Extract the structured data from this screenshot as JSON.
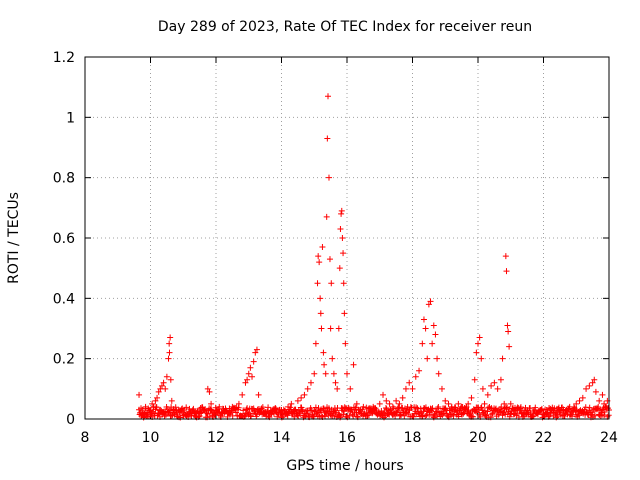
{
  "chart_data": {
    "type": "scatter",
    "title": "Day 289 of 2023, Rate Of TEC Index for receiver reun",
    "xlabel": "GPS time / hours",
    "ylabel": "ROTI / TECUs",
    "xlim": [
      8,
      24
    ],
    "ylim": [
      0,
      1.2
    ],
    "x_ticks": [
      8,
      10,
      12,
      14,
      16,
      18,
      20,
      22,
      24
    ],
    "x_tick_labels": [
      "8",
      "10",
      "12",
      "14",
      "16",
      "18",
      "20",
      "22",
      "24"
    ],
    "y_ticks": [
      0,
      0.2,
      0.4,
      0.6,
      0.8,
      1.0,
      1.2
    ],
    "y_tick_labels": [
      "0",
      "0.2",
      "0.4",
      "0.6",
      "0.8",
      "1",
      "1.2"
    ],
    "grid": true,
    "marker": "+",
    "color": "#ff0000",
    "series": [
      {
        "values_description_free": true,
        "points": [
          [
            9.65,
            0.08
          ],
          [
            9.68,
            0.02
          ],
          [
            9.72,
            0.01
          ],
          [
            9.75,
            0.03
          ],
          [
            9.8,
            0.02
          ],
          [
            9.85,
            0.04
          ],
          [
            9.9,
            0.01
          ],
          [
            9.95,
            0.03
          ],
          [
            10.0,
            0.02
          ],
          [
            10.05,
            0.05
          ],
          [
            10.1,
            0.04
          ],
          [
            10.15,
            0.06
          ],
          [
            10.2,
            0.07
          ],
          [
            10.25,
            0.09
          ],
          [
            10.3,
            0.1
          ],
          [
            10.35,
            0.11
          ],
          [
            10.4,
            0.12
          ],
          [
            10.45,
            0.1
          ],
          [
            10.5,
            0.14
          ],
          [
            10.55,
            0.2
          ],
          [
            10.57,
            0.25
          ],
          [
            10.6,
            0.27
          ],
          [
            10.58,
            0.22
          ],
          [
            10.62,
            0.13
          ],
          [
            10.65,
            0.06
          ],
          [
            10.7,
            0.03
          ],
          [
            10.8,
            0.02
          ],
          [
            10.9,
            0.03
          ],
          [
            11.0,
            0.02
          ],
          [
            11.1,
            0.01
          ],
          [
            11.2,
            0.02
          ],
          [
            11.3,
            0.03
          ],
          [
            11.4,
            0.02
          ],
          [
            11.5,
            0.01
          ],
          [
            11.6,
            0.03
          ],
          [
            11.7,
            0.02
          ],
          [
            11.75,
            0.1
          ],
          [
            11.8,
            0.09
          ],
          [
            11.85,
            0.05
          ],
          [
            11.9,
            0.02
          ],
          [
            12.0,
            0.03
          ],
          [
            12.1,
            0.04
          ],
          [
            12.2,
            0.02
          ],
          [
            12.3,
            0.03
          ],
          [
            12.4,
            0.02
          ],
          [
            12.5,
            0.04
          ],
          [
            12.6,
            0.03
          ],
          [
            12.7,
            0.05
          ],
          [
            12.8,
            0.08
          ],
          [
            12.9,
            0.12
          ],
          [
            12.95,
            0.13
          ],
          [
            13.0,
            0.15
          ],
          [
            13.05,
            0.17
          ],
          [
            13.1,
            0.14
          ],
          [
            13.15,
            0.19
          ],
          [
            13.2,
            0.22
          ],
          [
            13.25,
            0.23
          ],
          [
            13.3,
            0.08
          ],
          [
            13.4,
            0.03
          ],
          [
            13.5,
            0.02
          ],
          [
            13.6,
            0.01
          ],
          [
            13.7,
            0.02
          ],
          [
            13.8,
            0.03
          ],
          [
            13.9,
            0.02
          ],
          [
            14.0,
            0.03
          ],
          [
            14.1,
            0.02
          ],
          [
            14.2,
            0.04
          ],
          [
            14.3,
            0.05
          ],
          [
            14.4,
            0.03
          ],
          [
            14.5,
            0.06
          ],
          [
            14.6,
            0.07
          ],
          [
            14.7,
            0.08
          ],
          [
            14.8,
            0.1
          ],
          [
            14.9,
            0.12
          ],
          [
            15.0,
            0.15
          ],
          [
            15.05,
            0.25
          ],
          [
            15.1,
            0.45
          ],
          [
            15.12,
            0.54
          ],
          [
            15.15,
            0.52
          ],
          [
            15.18,
            0.4
          ],
          [
            15.2,
            0.35
          ],
          [
            15.22,
            0.3
          ],
          [
            15.25,
            0.57
          ],
          [
            15.28,
            0.22
          ],
          [
            15.3,
            0.18
          ],
          [
            15.35,
            0.15
          ],
          [
            15.38,
            0.67
          ],
          [
            15.4,
            0.93
          ],
          [
            15.42,
            1.07
          ],
          [
            15.45,
            0.8
          ],
          [
            15.48,
            0.53
          ],
          [
            15.5,
            0.3
          ],
          [
            15.52,
            0.45
          ],
          [
            15.55,
            0.2
          ],
          [
            15.6,
            0.15
          ],
          [
            15.65,
            0.12
          ],
          [
            15.7,
            0.1
          ],
          [
            15.75,
            0.3
          ],
          [
            15.78,
            0.5
          ],
          [
            15.8,
            0.63
          ],
          [
            15.82,
            0.68
          ],
          [
            15.84,
            0.69
          ],
          [
            15.86,
            0.6
          ],
          [
            15.88,
            0.55
          ],
          [
            15.9,
            0.45
          ],
          [
            15.92,
            0.35
          ],
          [
            15.95,
            0.25
          ],
          [
            16.0,
            0.15
          ],
          [
            16.1,
            0.1
          ],
          [
            16.2,
            0.18
          ],
          [
            16.3,
            0.05
          ],
          [
            16.4,
            0.03
          ],
          [
            16.5,
            0.04
          ],
          [
            16.6,
            0.02
          ],
          [
            16.7,
            0.03
          ],
          [
            16.8,
            0.04
          ],
          [
            16.9,
            0.03
          ],
          [
            17.0,
            0.05
          ],
          [
            17.1,
            0.08
          ],
          [
            17.2,
            0.06
          ],
          [
            17.3,
            0.05
          ],
          [
            17.4,
            0.04
          ],
          [
            17.5,
            0.06
          ],
          [
            17.6,
            0.05
          ],
          [
            17.7,
            0.07
          ],
          [
            17.8,
            0.1
          ],
          [
            17.9,
            0.12
          ],
          [
            18.0,
            0.1
          ],
          [
            18.1,
            0.14
          ],
          [
            18.2,
            0.16
          ],
          [
            18.3,
            0.25
          ],
          [
            18.35,
            0.33
          ],
          [
            18.4,
            0.3
          ],
          [
            18.45,
            0.2
          ],
          [
            18.5,
            0.38
          ],
          [
            18.55,
            0.39
          ],
          [
            18.6,
            0.25
          ],
          [
            18.65,
            0.31
          ],
          [
            18.7,
            0.28
          ],
          [
            18.75,
            0.2
          ],
          [
            18.8,
            0.15
          ],
          [
            18.9,
            0.1
          ],
          [
            19.0,
            0.06
          ],
          [
            19.1,
            0.05
          ],
          [
            19.2,
            0.04
          ],
          [
            19.3,
            0.03
          ],
          [
            19.4,
            0.05
          ],
          [
            19.5,
            0.04
          ],
          [
            19.6,
            0.03
          ],
          [
            19.7,
            0.05
          ],
          [
            19.8,
            0.07
          ],
          [
            19.9,
            0.13
          ],
          [
            19.95,
            0.22
          ],
          [
            20.0,
            0.25
          ],
          [
            20.05,
            0.27
          ],
          [
            20.1,
            0.2
          ],
          [
            20.15,
            0.1
          ],
          [
            20.2,
            0.05
          ],
          [
            20.3,
            0.08
          ],
          [
            20.4,
            0.11
          ],
          [
            20.5,
            0.12
          ],
          [
            20.6,
            0.1
          ],
          [
            20.7,
            0.13
          ],
          [
            20.75,
            0.2
          ],
          [
            20.8,
            0.05
          ],
          [
            20.85,
            0.54
          ],
          [
            20.87,
            0.49
          ],
          [
            20.9,
            0.31
          ],
          [
            20.92,
            0.29
          ],
          [
            20.95,
            0.24
          ],
          [
            21.0,
            0.05
          ],
          [
            21.1,
            0.03
          ],
          [
            21.2,
            0.02
          ],
          [
            21.3,
            0.03
          ],
          [
            21.4,
            0.02
          ],
          [
            21.5,
            0.03
          ],
          [
            21.6,
            0.02
          ],
          [
            21.7,
            0.01
          ],
          [
            21.8,
            0.02
          ],
          [
            21.9,
            0.03
          ],
          [
            22.0,
            0.02
          ],
          [
            22.1,
            0.03
          ],
          [
            22.2,
            0.02
          ],
          [
            22.3,
            0.01
          ],
          [
            22.4,
            0.02
          ],
          [
            22.5,
            0.03
          ],
          [
            22.6,
            0.02
          ],
          [
            22.7,
            0.03
          ],
          [
            22.8,
            0.04
          ],
          [
            22.9,
            0.03
          ],
          [
            23.0,
            0.05
          ],
          [
            23.1,
            0.06
          ],
          [
            23.2,
            0.07
          ],
          [
            23.3,
            0.1
          ],
          [
            23.4,
            0.11
          ],
          [
            23.5,
            0.12
          ],
          [
            23.55,
            0.13
          ],
          [
            23.6,
            0.09
          ],
          [
            23.7,
            0.06
          ],
          [
            23.8,
            0.08
          ],
          [
            23.85,
            0.05
          ],
          [
            23.9,
            0.04
          ],
          [
            23.95,
            0.06
          ],
          [
            24.0,
            0.03
          ]
        ]
      }
    ]
  }
}
